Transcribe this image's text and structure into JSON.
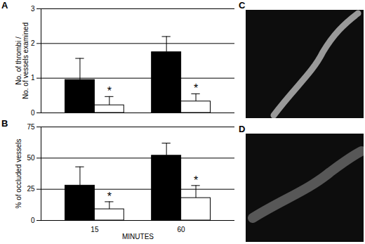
{
  "chart_data": [
    {
      "type": "bar",
      "title": "A",
      "y_label": "No. of thrombi /\nNo. of vessels examined",
      "categories": [
        "15",
        "60"
      ],
      "series": [
        {
          "color": "#000000",
          "values": [
            0.95,
            1.75
          ],
          "errors": [
            0.62,
            0.45
          ]
        },
        {
          "color": "#ffffff",
          "values": [
            0.22,
            0.33
          ],
          "errors": [
            0.25,
            0.22
          ]
        }
      ],
      "annotations": [
        {
          "category": "15",
          "text": "*"
        },
        {
          "category": "60",
          "text": "*"
        }
      ],
      "ylim": [
        0,
        3
      ],
      "yticks": [
        0,
        1,
        2,
        3
      ],
      "grid": true,
      "tick_labels": "y"
    },
    {
      "type": "bar",
      "title": "B",
      "y_label": "% of occluded vessels",
      "x_label": "MINUTES",
      "categories": [
        "15",
        "60"
      ],
      "series": [
        {
          "color": "#000000",
          "values": [
            28,
            52
          ],
          "errors": [
            15,
            10
          ]
        },
        {
          "color": "#ffffff",
          "values": [
            9,
            18
          ],
          "errors": [
            6,
            10
          ]
        }
      ],
      "annotations": [
        {
          "category": "15",
          "text": "*"
        },
        {
          "category": "60",
          "text": "*"
        }
      ],
      "ylim": [
        0,
        75
      ],
      "yticks": [
        0,
        25,
        50,
        75
      ],
      "grid": true,
      "tick_labels": true
    }
  ],
  "images": [
    {
      "title": "C"
    },
    {
      "title": "D"
    }
  ]
}
